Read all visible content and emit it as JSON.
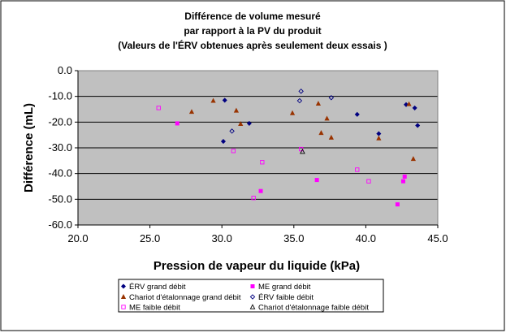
{
  "chart_data": {
    "type": "scatter",
    "title_lines": [
      "Différence de volume mesuré",
      "par rapport à la PV du produit",
      "(Valeurs de l'ÉRV obtenues après seulement deux essais )"
    ],
    "xlabel": "Pression de vapeur du liquide (kPa)",
    "ylabel": "Différence (mL)",
    "xlim": [
      20.0,
      45.0
    ],
    "ylim": [
      -60.0,
      0.0
    ],
    "x_ticks": [
      "20.0",
      "25.0",
      "30.0",
      "35.0",
      "40.0",
      "45.0"
    ],
    "y_ticks": [
      "0.0",
      "-10.0",
      "-20.0",
      "-30.0",
      "-40.0",
      "-50.0",
      "-60.0"
    ],
    "grid": "horizontal",
    "plot_background": "#c0c0c0",
    "legend_position": "bottom",
    "series": [
      {
        "name": "ÉRV grand débit",
        "marker": "diamond-filled",
        "color": "#000080",
        "points": [
          [
            30.2,
            -11.5
          ],
          [
            30.1,
            -27.5
          ],
          [
            31.9,
            -20.5
          ],
          [
            39.4,
            -17.0
          ],
          [
            40.9,
            -24.5
          ],
          [
            42.8,
            -13.2
          ],
          [
            43.4,
            -14.5
          ],
          [
            43.6,
            -21.3
          ]
        ]
      },
      {
        "name": "ME grand débit",
        "marker": "square-filled",
        "color": "#ff00ff",
        "points": [
          [
            26.9,
            -20.5
          ],
          [
            32.7,
            -46.8
          ],
          [
            36.6,
            -42.5
          ],
          [
            42.6,
            -43.0
          ],
          [
            42.7,
            -41.2
          ],
          [
            42.2,
            -52.0
          ]
        ]
      },
      {
        "name": "Chariot d'étalonnage grand débit",
        "marker": "triangle-filled",
        "color": "#993300",
        "points": [
          [
            27.9,
            -16.0
          ],
          [
            29.4,
            -11.7
          ],
          [
            31.0,
            -15.5
          ],
          [
            31.3,
            -20.7
          ],
          [
            34.9,
            -16.5
          ],
          [
            36.7,
            -12.8
          ],
          [
            37.3,
            -18.6
          ],
          [
            36.9,
            -24.2
          ],
          [
            37.6,
            -26.0
          ],
          [
            40.9,
            -26.3
          ],
          [
            43.0,
            -13.0
          ],
          [
            43.3,
            -34.3
          ]
        ]
      },
      {
        "name": "ÉRV faible débit",
        "marker": "diamond-open",
        "color": "#000080",
        "points": [
          [
            30.7,
            -23.5
          ],
          [
            35.5,
            -8.0
          ],
          [
            35.4,
            -11.7
          ],
          [
            37.6,
            -10.5
          ]
        ]
      },
      {
        "name": "ME faible débit",
        "marker": "square-open",
        "color": "#ff00ff",
        "points": [
          [
            25.6,
            -14.5
          ],
          [
            30.8,
            -31.2
          ],
          [
            32.8,
            -35.6
          ],
          [
            32.2,
            -49.5
          ],
          [
            35.5,
            -30.5
          ],
          [
            39.4,
            -38.5
          ],
          [
            40.2,
            -43.0
          ]
        ]
      },
      {
        "name": "Chariot d'étalonnage faible débit",
        "marker": "triangle-open",
        "color": "#000000",
        "points": [
          [
            35.6,
            -31.5
          ]
        ]
      }
    ]
  }
}
